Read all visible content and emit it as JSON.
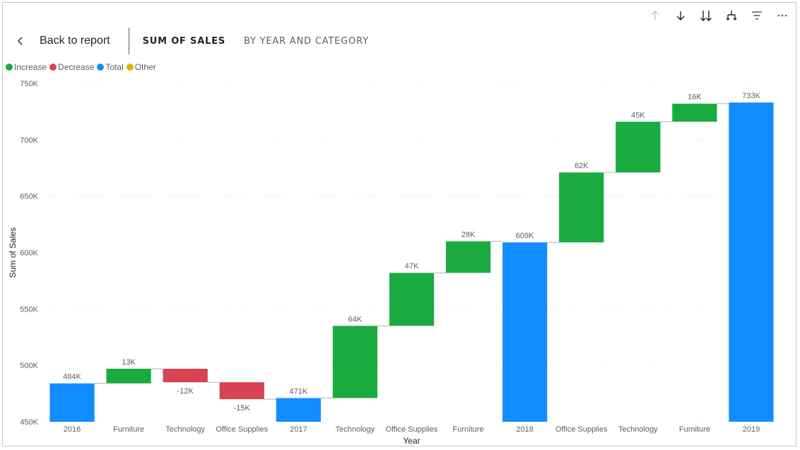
{
  "header": {
    "back_label": "Back to report",
    "tabs": [
      {
        "label": "SUM OF SALES"
      },
      {
        "label": "BY YEAR AND CATEGORY"
      }
    ]
  },
  "toolbar": {
    "icons": [
      "drill-up-icon",
      "drill-down-icon",
      "expand-all-icon",
      "hierarchy-icon",
      "filter-icon",
      "more-options-icon"
    ]
  },
  "legend": [
    {
      "label": "Increase",
      "color": "#1aab40"
    },
    {
      "label": "Decrease",
      "color": "#d64554"
    },
    {
      "label": "Total",
      "color": "#118dff"
    },
    {
      "label": "Other",
      "color": "#d9b300"
    }
  ],
  "chart_data": {
    "type": "waterfall",
    "xlabel": "Year",
    "ylabel": "Sum of Sales",
    "ylim": [
      450000,
      750000
    ],
    "yticks": [
      450000,
      500000,
      550000,
      600000,
      650000,
      700000,
      750000
    ],
    "ytick_labels": [
      "450K",
      "500K",
      "550K",
      "600K",
      "650K",
      "700K",
      "750K"
    ],
    "grid": true,
    "legend_position": "top-left",
    "bars": [
      {
        "category": "2016",
        "kind": "Total",
        "value": 484000,
        "label": "484K"
      },
      {
        "category": "Furniture",
        "kind": "Increase",
        "value": 13000,
        "label": "13K"
      },
      {
        "category": "Technology",
        "kind": "Decrease",
        "value": -12000,
        "label": "-12K"
      },
      {
        "category": "Office Supplies",
        "kind": "Decrease",
        "value": -15000,
        "label": "-15K"
      },
      {
        "category": "2017",
        "kind": "Total",
        "value": 471000,
        "label": "471K"
      },
      {
        "category": "Technology",
        "kind": "Increase",
        "value": 64000,
        "label": "64K"
      },
      {
        "category": "Office Supplies",
        "kind": "Increase",
        "value": 47000,
        "label": "47K"
      },
      {
        "category": "Furniture",
        "kind": "Increase",
        "value": 28000,
        "label": "28K"
      },
      {
        "category": "2018",
        "kind": "Total",
        "value": 609000,
        "label": "609K"
      },
      {
        "category": "Office Supplies",
        "kind": "Increase",
        "value": 62000,
        "label": "62K"
      },
      {
        "category": "Technology",
        "kind": "Increase",
        "value": 45000,
        "label": "45K"
      },
      {
        "category": "Furniture",
        "kind": "Increase",
        "value": 16000,
        "label": "16K"
      },
      {
        "category": "2019",
        "kind": "Total",
        "value": 733000,
        "label": "733K"
      }
    ]
  }
}
